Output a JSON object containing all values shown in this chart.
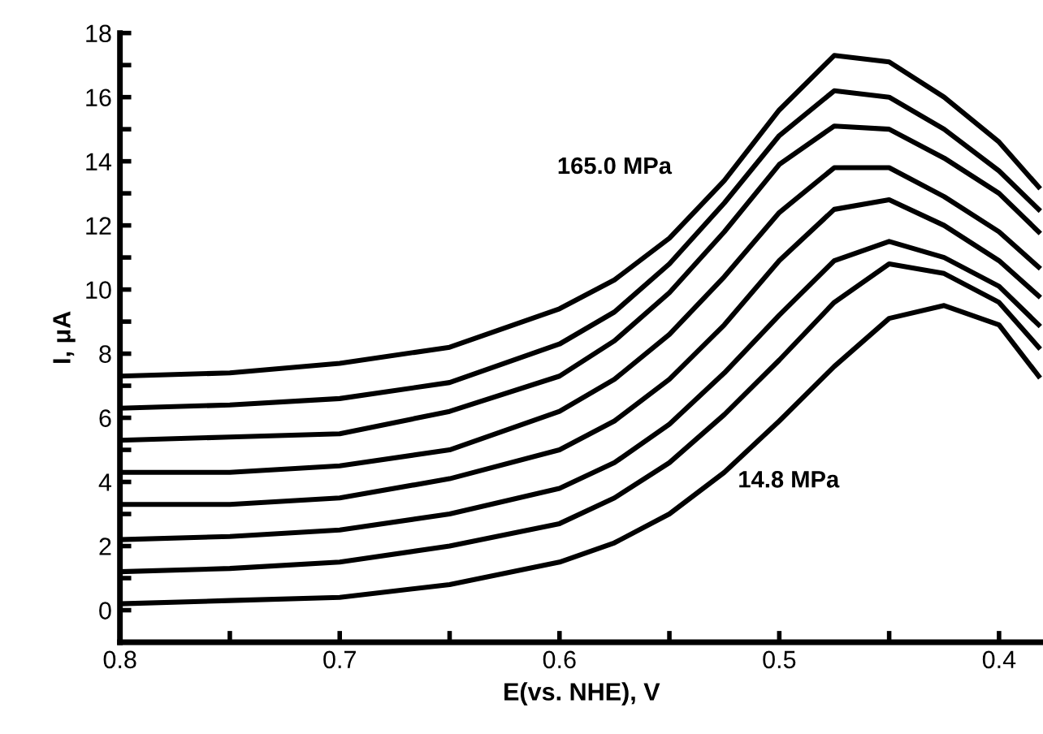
{
  "chart_data": {
    "type": "line",
    "xlabel": "E(vs. NHE), V",
    "ylabel": "I, μA",
    "x": [
      0.8,
      0.75,
      0.7,
      0.65,
      0.6,
      0.575,
      0.55,
      0.525,
      0.5,
      0.475,
      0.45,
      0.425,
      0.4,
      0.382
    ],
    "series": [
      {
        "name": "14.8 MPa",
        "color": "#000000",
        "values": [
          0.2,
          0.3,
          0.4,
          0.8,
          1.5,
          2.1,
          3.0,
          4.3,
          5.9,
          7.6,
          9.1,
          9.5,
          8.9,
          7.3
        ]
      },
      {
        "color": "#000000",
        "values": [
          1.2,
          1.3,
          1.5,
          2.0,
          2.7,
          3.5,
          4.6,
          6.1,
          7.8,
          9.6,
          10.8,
          10.5,
          9.6,
          8.2
        ]
      },
      {
        "color": "#000000",
        "values": [
          2.2,
          2.3,
          2.5,
          3.0,
          3.8,
          4.6,
          5.8,
          7.4,
          9.2,
          10.9,
          11.5,
          11.0,
          10.1,
          8.9
        ]
      },
      {
        "color": "#000000",
        "values": [
          3.3,
          3.3,
          3.5,
          4.1,
          5.0,
          5.9,
          7.2,
          8.9,
          10.9,
          12.5,
          12.8,
          12.0,
          10.9,
          9.8
        ]
      },
      {
        "color": "#000000",
        "values": [
          4.3,
          4.3,
          4.5,
          5.0,
          6.2,
          7.2,
          8.6,
          10.4,
          12.4,
          13.8,
          13.8,
          12.9,
          11.8,
          10.7
        ]
      },
      {
        "color": "#000000",
        "values": [
          5.3,
          5.4,
          5.5,
          6.2,
          7.3,
          8.4,
          9.9,
          11.8,
          13.9,
          15.1,
          15.0,
          14.1,
          13.0,
          11.8
        ]
      },
      {
        "color": "#000000",
        "values": [
          6.3,
          6.4,
          6.6,
          7.1,
          8.3,
          9.3,
          10.8,
          12.7,
          14.8,
          16.2,
          16.0,
          15.0,
          13.7,
          12.5
        ]
      },
      {
        "name": "165.0 MPa",
        "color": "#000000",
        "values": [
          7.3,
          7.4,
          7.7,
          8.2,
          9.4,
          10.3,
          11.6,
          13.4,
          15.6,
          17.3,
          17.1,
          16.0,
          14.6,
          13.2
        ]
      }
    ],
    "xlim": [
      0.8,
      0.38
    ],
    "xticks": [
      0.8,
      {
        "value": 0.75,
        "label": null
      },
      0.7,
      {
        "value": 0.65,
        "label": null
      },
      0.6,
      {
        "value": 0.55,
        "label": null
      },
      0.5,
      {
        "value": 0.45,
        "label": null
      },
      0.4
    ],
    "ylim": [
      -1,
      18
    ],
    "yticks": [
      0,
      {
        "value": 1,
        "label": null
      },
      2,
      {
        "value": 3,
        "label": null
      },
      4,
      {
        "value": 5,
        "label": null
      },
      6,
      {
        "value": 7,
        "label": null
      },
      8,
      {
        "value": 9,
        "label": null
      },
      10,
      {
        "value": 11,
        "label": null
      },
      12,
      {
        "value": 13,
        "label": null
      },
      14,
      {
        "value": 15,
        "label": null
      },
      16,
      {
        "value": 17,
        "label": null
      },
      18
    ],
    "grid": false,
    "legend": false,
    "marker": "none",
    "line_style": "solid"
  }
}
